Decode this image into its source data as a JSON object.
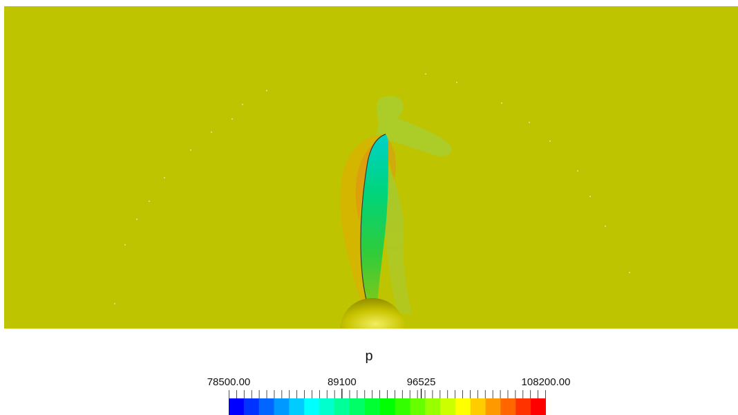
{
  "scalar_bar": {
    "title": "p",
    "min_label": "78500.00",
    "mid1_label": "89100",
    "mid2_label": "96525",
    "max_label": "108200.00",
    "min_value": 78500,
    "max_value": 108200,
    "mid1_value": 89100,
    "mid2_value": 96525,
    "minor_tick_count": 42,
    "colors": [
      "#0000ff",
      "#0033ff",
      "#0066ff",
      "#0099ff",
      "#00ccff",
      "#00ffff",
      "#00ffcc",
      "#00ff99",
      "#00ff66",
      "#00ff33",
      "#00ff00",
      "#33ff00",
      "#66ff00",
      "#99ff00",
      "#ccff00",
      "#ffff00",
      "#ffcc00",
      "#ff9900",
      "#ff6600",
      "#ff3300",
      "#ff0000"
    ]
  },
  "scene": {
    "background_color": "#bec500",
    "blade_colors": [
      "#00d2b4",
      "#00d25a",
      "#40c83a"
    ],
    "hub_color": "#c8c400"
  }
}
